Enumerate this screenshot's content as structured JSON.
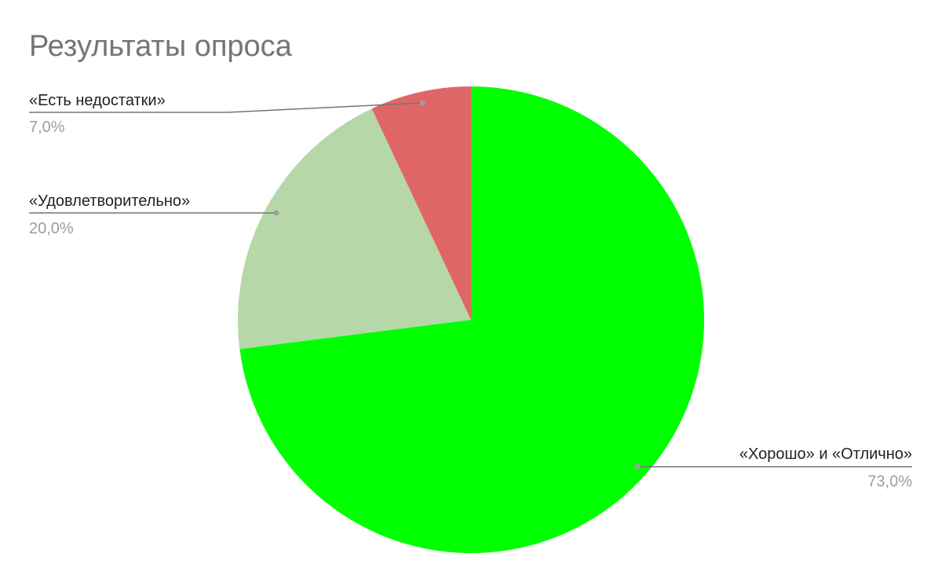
{
  "chart_data": {
    "type": "pie",
    "title": "Результаты опроса",
    "start_angle": "top",
    "direction": "clockwise",
    "slices": [
      {
        "label": "«Хорошо» и «Отлично»",
        "value": 73.0,
        "value_label": "73,0%",
        "color": "#00ff00"
      },
      {
        "label": "«Удовлетворительно»",
        "value": 20.0,
        "value_label": "20,0%",
        "color": "#b6d7a8"
      },
      {
        "label": "«Есть недостатки»",
        "value": 7.0,
        "value_label": "7,0%",
        "color": "#e06666"
      }
    ],
    "legend": "none",
    "leader_line_color": "#757575"
  }
}
